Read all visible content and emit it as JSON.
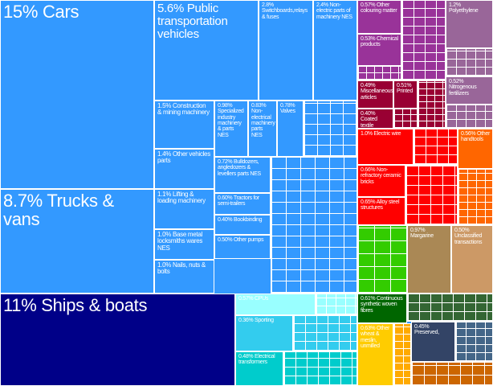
{
  "chart_data": {
    "type": "treemap",
    "items": [
      {
        "label": "15% Cars",
        "value": 15,
        "color": "#3399ff"
      },
      {
        "label": "8.7% Trucks & vans",
        "value": 8.7,
        "color": "#3399ff"
      },
      {
        "label": "11% Ships & boats",
        "value": 11,
        "color": "#000088"
      },
      {
        "label": "5.6% Public transportation vehicles",
        "value": 5.6,
        "color": "#3399ff"
      },
      {
        "label": "2.8% Switchboards,relays & fuses",
        "value": 2.8,
        "color": "#3399ff"
      },
      {
        "label": "2.4% Non-electric parts of machinery NES",
        "value": 2.4,
        "color": "#3399ff"
      },
      {
        "label": "1.5% Construction & mining machinery",
        "value": 1.5,
        "color": "#3399ff"
      },
      {
        "label": "1.4% Other vehicles parts",
        "value": 1.4,
        "color": "#3399ff"
      },
      {
        "label": "1.1% Lifting & loading machinery",
        "value": 1.1,
        "color": "#3399ff"
      },
      {
        "label": "1.0% Base metal locksmiths wares NES",
        "value": 1.0,
        "color": "#3399ff"
      },
      {
        "label": "1.0% Nails, nuts & bolts",
        "value": 1.0,
        "color": "#3399ff"
      },
      {
        "label": "0.98% Specialized industry machinery & parts NES",
        "value": 0.98,
        "color": "#3399ff"
      },
      {
        "label": "0.83% Non-electrical machinery parts NES",
        "value": 0.83,
        "color": "#3399ff"
      },
      {
        "label": "0.78% Valves",
        "value": 0.78,
        "color": "#3399ff"
      },
      {
        "label": "0.72% Bulldozers, angledozers & levellers parts NES",
        "value": 0.72,
        "color": "#3399ff"
      },
      {
        "label": "0.60% Tractors for semi-trailers",
        "value": 0.6,
        "color": "#3399ff"
      },
      {
        "label": "0.40% Bookbinding",
        "value": 0.4,
        "color": "#3399ff"
      },
      {
        "label": "0.50% Other pumps",
        "value": 0.5,
        "color": "#3399ff"
      },
      {
        "label": "0.57% CPUs",
        "value": 0.57,
        "color": "#99ffff"
      },
      {
        "label": "0.36% Sporting",
        "value": 0.36,
        "color": "#33ccee"
      },
      {
        "label": "0.48% Electrical transformers",
        "value": 0.48,
        "color": "#00cccc"
      },
      {
        "label": "0.57% Other colouring matter",
        "value": 0.57,
        "color": "#993399"
      },
      {
        "label": "0.53% Chemical products",
        "value": 0.53,
        "color": "#993399"
      },
      {
        "label": "1.2% Polyethylene",
        "value": 1.2,
        "color": "#996699"
      },
      {
        "label": "0.52% Nitrogenous fertilizers",
        "value": 0.52,
        "color": "#996699"
      },
      {
        "label": "0.49% Miscellaneous articles",
        "value": 0.49,
        "color": "#990033"
      },
      {
        "label": "0.51% Printed",
        "value": 0.51,
        "color": "#990033"
      },
      {
        "label": "0.40% Coated textile",
        "value": 0.4,
        "color": "#990033"
      },
      {
        "label": "1.0% Electric wire",
        "value": 1.0,
        "color": "#ff0000"
      },
      {
        "label": "0.66% Non-refractory ceramic bricks",
        "value": 0.66,
        "color": "#ff0000"
      },
      {
        "label": "0.65% Alloy steel structures",
        "value": 0.65,
        "color": "#ff0000"
      },
      {
        "label": "0.56% Other handtools",
        "value": 0.56,
        "color": "#ff6600"
      },
      {
        "label": "0.97% Margarine",
        "value": 0.97,
        "color": "#aa8855"
      },
      {
        "label": "0.50% Unclassified transactions",
        "value": 0.5,
        "color": "#cc9966"
      },
      {
        "label": "0.61% Continuous synthetic woven fibres",
        "value": 0.61,
        "color": "#006600"
      },
      {
        "label": "0.63% Other wheat & meslin, unmilled",
        "value": 0.63,
        "color": "#ffcc00"
      },
      {
        "label": "0.45% Preserved,",
        "value": 0.45,
        "color": "#334466"
      }
    ]
  }
}
